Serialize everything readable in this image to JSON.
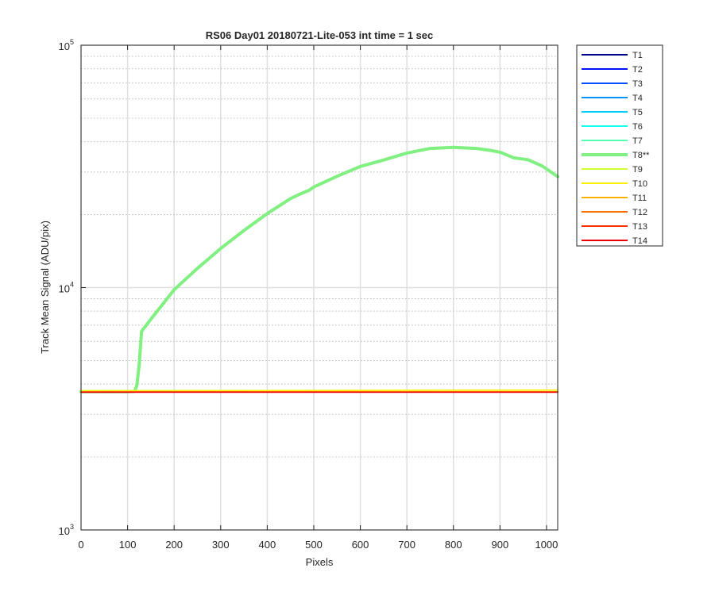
{
  "chart_data": {
    "type": "line",
    "title": "RS06 Day01 20180721-Lite-053 int time = 1 sec",
    "xlabel": "Pixels",
    "ylabel": "Track Mean Signal (ADU/pix)",
    "xlim": [
      0,
      1024
    ],
    "ylim": [
      1000,
      100000
    ],
    "yscale": "log",
    "grid": true,
    "legend_position": "outside-top-right",
    "x_ticks": [
      "0",
      "100",
      "200",
      "300",
      "400",
      "500",
      "600",
      "700",
      "800",
      "900",
      "1000"
    ],
    "y_ticks": [
      {
        "base": "10",
        "exp": "3",
        "value": 1000
      },
      {
        "base": "10",
        "exp": "4",
        "value": 10000
      },
      {
        "base": "10",
        "exp": "5",
        "value": 100000
      }
    ],
    "series": [
      {
        "name": "T1",
        "color": "#00008F",
        "width": 1.5,
        "x": [
          0,
          1024
        ],
        "y": [
          3720,
          3720
        ]
      },
      {
        "name": "T2",
        "color": "#0010FF",
        "width": 1.5,
        "x": [
          0,
          1024
        ],
        "y": [
          3720,
          3720
        ]
      },
      {
        "name": "T3",
        "color": "#0050FF",
        "width": 1.5,
        "x": [
          0,
          1024
        ],
        "y": [
          3720,
          3720
        ]
      },
      {
        "name": "T4",
        "color": "#0090FF",
        "width": 1.5,
        "x": [
          0,
          1024
        ],
        "y": [
          3720,
          3720
        ]
      },
      {
        "name": "T5",
        "color": "#00CFFF",
        "width": 1.5,
        "x": [
          0,
          1024
        ],
        "y": [
          3720,
          3720
        ]
      },
      {
        "name": "T6",
        "color": "#10FFEF",
        "width": 1.5,
        "x": [
          0,
          1024
        ],
        "y": [
          3720,
          3720
        ]
      },
      {
        "name": "T7",
        "color": "#50FFAF",
        "width": 1.5,
        "x": [
          0,
          1024
        ],
        "y": [
          3720,
          3720
        ]
      },
      {
        "name": "T8**",
        "color": "#80F080",
        "width": 4,
        "x": [
          0,
          100,
          115,
          120,
          125,
          130,
          150,
          200,
          250,
          300,
          350,
          400,
          450,
          470,
          490,
          500,
          550,
          600,
          650,
          700,
          750,
          800,
          850,
          880,
          900,
          930,
          960,
          990,
          1024
        ],
        "y": [
          3720,
          3720,
          3730,
          3950,
          4800,
          6600,
          7400,
          9800,
          12000,
          14500,
          17200,
          20200,
          23300,
          24300,
          25200,
          26000,
          28800,
          31600,
          33600,
          35900,
          37500,
          37900,
          37500,
          36800,
          36200,
          34300,
          33700,
          31800,
          28700
        ]
      },
      {
        "name": "T9",
        "color": "#CFFF30",
        "width": 1.5,
        "x": [
          0,
          1024
        ],
        "y": [
          3760,
          3770
        ]
      },
      {
        "name": "T10",
        "color": "#FFEF00",
        "width": 1.5,
        "x": [
          0,
          1024
        ],
        "y": [
          3740,
          3780
        ]
      },
      {
        "name": "T11",
        "color": "#FFB000",
        "width": 1.5,
        "x": [
          0,
          1024
        ],
        "y": [
          3720,
          3720
        ]
      },
      {
        "name": "T12",
        "color": "#FF7000",
        "width": 1.5,
        "x": [
          0,
          1024
        ],
        "y": [
          3710,
          3710
        ]
      },
      {
        "name": "T13",
        "color": "#FF3000",
        "width": 1.5,
        "x": [
          0,
          1024
        ],
        "y": [
          3700,
          3700
        ]
      },
      {
        "name": "T14",
        "color": "#EF0000",
        "width": 1.5,
        "x": [
          0,
          1024
        ],
        "y": [
          3700,
          3700
        ]
      }
    ]
  }
}
